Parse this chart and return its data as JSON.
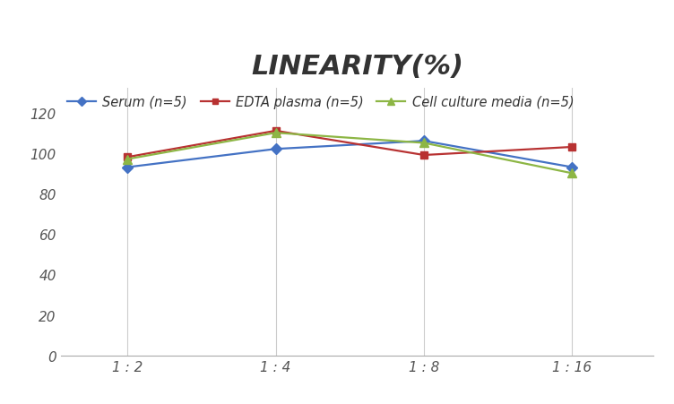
{
  "title": "LINEARITY(%)",
  "x_labels": [
    "1 : 2",
    "1 : 4",
    "1 : 8",
    "1 : 16"
  ],
  "x_positions": [
    0,
    1,
    2,
    3
  ],
  "series": [
    {
      "label": "Serum (n=5)",
      "values": [
        93,
        102,
        106,
        93
      ],
      "color": "#4472C4",
      "marker": "D",
      "marker_size": 6
    },
    {
      "label": "EDTA plasma (n=5)",
      "values": [
        98,
        111,
        99,
        103
      ],
      "color": "#B83232",
      "marker": "s",
      "marker_size": 6
    },
    {
      "label": "Cell culture media (n=5)",
      "values": [
        97,
        110,
        105,
        90
      ],
      "color": "#8DB645",
      "marker": "^",
      "marker_size": 7
    }
  ],
  "ylim": [
    0,
    132
  ],
  "yticks": [
    0,
    20,
    40,
    60,
    80,
    100,
    120
  ],
  "background_color": "#FFFFFF",
  "grid_color": "#CCCCCC",
  "title_fontsize": 22,
  "legend_fontsize": 10.5,
  "tick_fontsize": 11
}
